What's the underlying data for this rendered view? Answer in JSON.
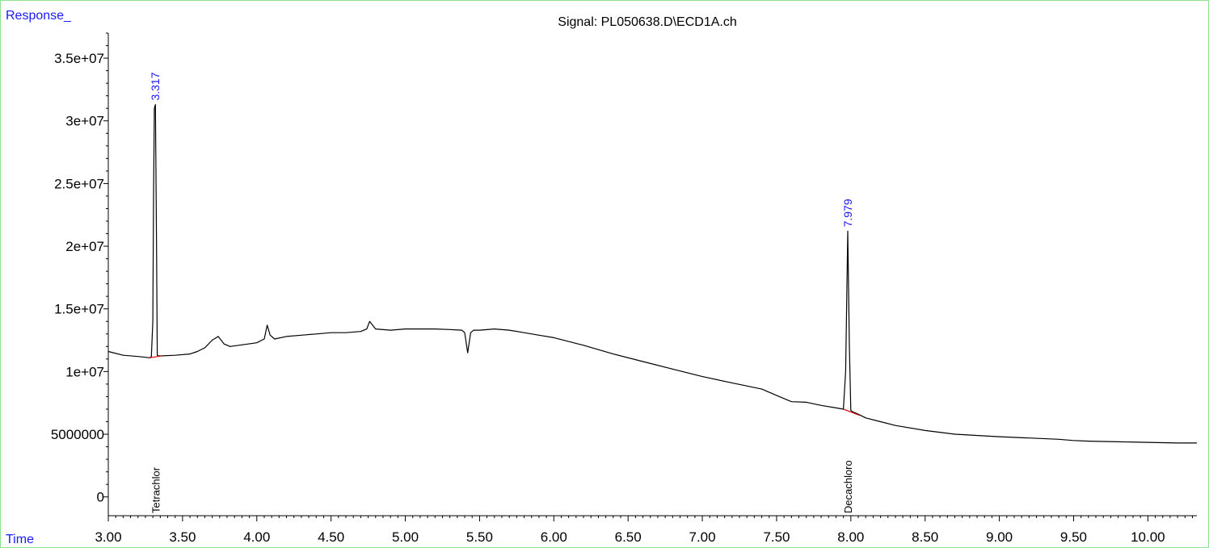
{
  "chart_data": {
    "type": "line",
    "title": "Signal: PL050638.D\\ECD1A.ch",
    "ylabel": "Response_",
    "xlabel": "Time",
    "xlim": [
      3.0,
      10.33
    ],
    "ylim": [
      -1500000,
      37000000
    ],
    "x_ticks": [
      "3.00",
      "3.50",
      "4.00",
      "4.50",
      "5.00",
      "5.50",
      "6.00",
      "6.50",
      "7.00",
      "7.50",
      "8.00",
      "8.50",
      "9.00",
      "9.50",
      "10.00"
    ],
    "x_tick_values": [
      3.0,
      3.5,
      4.0,
      4.5,
      5.0,
      5.5,
      6.0,
      6.5,
      7.0,
      7.5,
      8.0,
      8.5,
      9.0,
      9.5,
      10.0
    ],
    "y_ticks": [
      "0",
      "5000000",
      "1e+07",
      "1.5e+07",
      "2e+07",
      "2.5e+07",
      "3e+07",
      "3.5e+07"
    ],
    "y_tick_values": [
      0,
      5000000,
      10000000,
      15000000,
      20000000,
      25000000,
      30000000,
      35000000
    ],
    "series": [
      {
        "x": [
          3.0,
          3.1,
          3.2,
          3.28,
          3.29,
          3.3,
          3.305,
          3.31,
          3.317,
          3.325,
          3.33,
          3.34,
          3.35,
          3.45,
          3.55,
          3.6,
          3.65,
          3.7,
          3.74,
          3.78,
          3.82,
          3.88,
          4.0,
          4.05,
          4.07,
          4.09,
          4.12,
          4.2,
          4.3,
          4.4,
          4.5,
          4.6,
          4.7,
          4.74,
          4.76,
          4.8,
          4.9,
          5.0,
          5.1,
          5.2,
          5.3,
          5.38,
          5.4,
          5.42,
          5.44,
          5.46,
          5.5,
          5.6,
          5.7,
          5.8,
          5.9,
          6.0,
          6.2,
          6.4,
          6.6,
          6.8,
          7.0,
          7.2,
          7.4,
          7.5,
          7.6,
          7.7,
          7.8,
          7.9,
          7.95,
          7.965,
          7.979,
          7.99,
          8.0,
          8.01,
          8.05,
          8.1,
          8.2,
          8.3,
          8.5,
          8.7,
          9.0,
          9.2,
          9.4,
          9.5,
          9.6,
          9.8,
          10.0,
          10.2,
          10.33
        ],
        "y": [
          11600000,
          11300000,
          11200000,
          11100000,
          11200000,
          14000000,
          24000000,
          31000000,
          31300000,
          20000000,
          11300000,
          11250000,
          11250000,
          11300000,
          11400000,
          11600000,
          11900000,
          12500000,
          12800000,
          12200000,
          12000000,
          12100000,
          12300000,
          12600000,
          13700000,
          12900000,
          12600000,
          12800000,
          12900000,
          13000000,
          13100000,
          13100000,
          13200000,
          13400000,
          14000000,
          13400000,
          13300000,
          13400000,
          13400000,
          13400000,
          13350000,
          13300000,
          13100000,
          11500000,
          13100000,
          13300000,
          13300000,
          13400000,
          13300000,
          13100000,
          12900000,
          12700000,
          12100000,
          11400000,
          10800000,
          10200000,
          9600000,
          9100000,
          8600000,
          8100000,
          7600000,
          7550000,
          7300000,
          7100000,
          7000000,
          10000000,
          21200000,
          12000000,
          6900000,
          6800000,
          6600000,
          6300000,
          6000000,
          5700000,
          5300000,
          5000000,
          4800000,
          4700000,
          4600000,
          4500000,
          4450000,
          4400000,
          4350000,
          4300000,
          4300000
        ]
      }
    ],
    "baselines": [
      {
        "x": [
          3.28,
          3.36
        ],
        "y": [
          11100000,
          11250000
        ],
        "color": "#e00000"
      },
      {
        "x": [
          7.95,
          8.06
        ],
        "y": [
          7000000,
          6500000
        ],
        "color": "#e00000"
      }
    ],
    "peaks": [
      {
        "rt": "3.317",
        "x": 3.317,
        "y": 31300000,
        "compound": "Tetrachlor"
      },
      {
        "rt": "7.979",
        "x": 7.979,
        "y": 21200000,
        "compound": "Decachloro"
      }
    ],
    "grid": false,
    "legend": "none"
  },
  "colors": {
    "trace": "#000000",
    "peak_label": "#1a1aff",
    "baseline": "#e00000",
    "frame": "#8fe08f"
  }
}
